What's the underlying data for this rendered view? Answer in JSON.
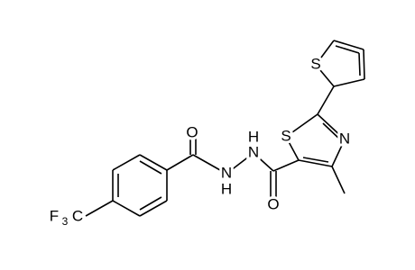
{
  "atoms": {
    "o_hydrazide": "O",
    "o_amide": "O",
    "n_left": "N",
    "h_left": "H",
    "n_right": "N",
    "h_right": "H",
    "s_thiazole": "S",
    "n_thiazole": "N",
    "s_thiophene": "S",
    "cf3_f": "F",
    "cf3_sub": "3",
    "cf3_c": "C"
  }
}
